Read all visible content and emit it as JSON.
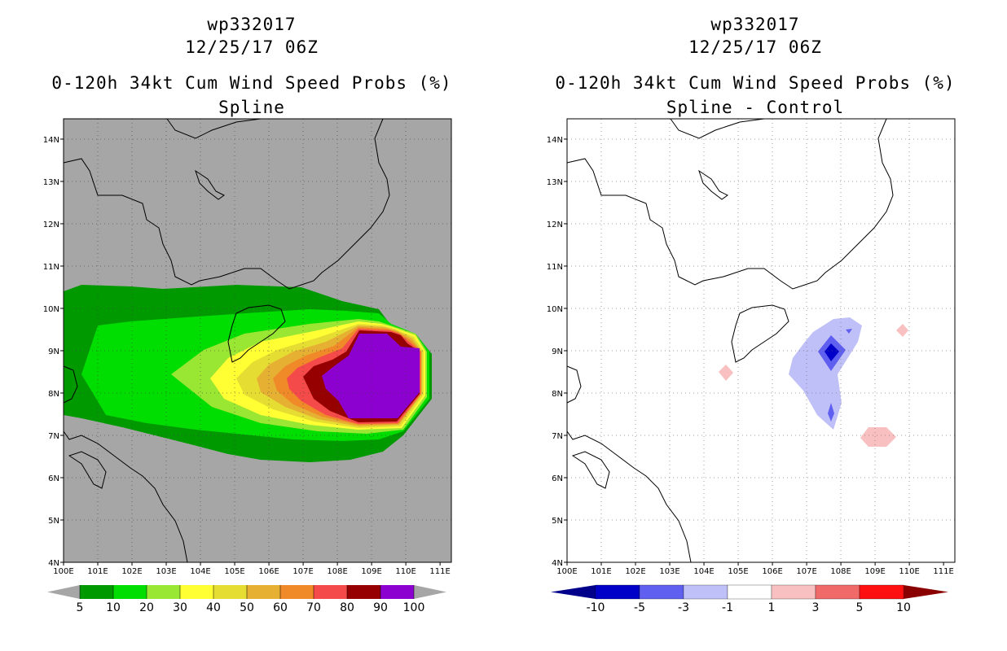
{
  "left": {
    "storm_id": "wp332017",
    "datetime": "12/25/17 06Z",
    "product": "0-120h 34kt Cum Wind Speed Probs (%)",
    "subtitle": "Spline",
    "colorbar": {
      "labels": [
        "5",
        "10",
        "20",
        "30",
        "40",
        "50",
        "60",
        "70",
        "80",
        "90",
        "100"
      ],
      "colors": [
        "#009900",
        "#00dd00",
        "#99e633",
        "#ffff33",
        "#e6dd33",
        "#e6b033",
        "#f08a28",
        "#f54a4a",
        "#960000",
        "#8c00d0"
      ],
      "extend_color": "#a6a6a6"
    },
    "background_color": "#a6a6a6"
  },
  "right": {
    "storm_id": "wp332017",
    "datetime": "12/25/17 06Z",
    "product": "0-120h 34kt Cum Wind Speed Probs (%)",
    "subtitle": "Spline - Control",
    "colorbar": {
      "labels": [
        "-10",
        "-5",
        "-3",
        "-1",
        "1",
        "3",
        "5",
        "10"
      ],
      "colors": [
        "#0000c8",
        "#6060f0",
        "#c0c0f8",
        "#ffffff",
        "#f8c0c0",
        "#f06a6a",
        "#ff1010"
      ],
      "low_color": "#00008a",
      "high_color": "#8a0000"
    },
    "background_color": "#ffffff"
  },
  "axes": {
    "lat_ticks": [
      "4N",
      "5N",
      "6N",
      "7N",
      "8N",
      "9N",
      "10N",
      "11N",
      "12N",
      "13N",
      "14N"
    ],
    "lon_ticks": [
      "100E",
      "101E",
      "102E",
      "103E",
      "104E",
      "105E",
      "106E",
      "107E",
      "108E",
      "109E",
      "110E",
      "111E"
    ]
  }
}
